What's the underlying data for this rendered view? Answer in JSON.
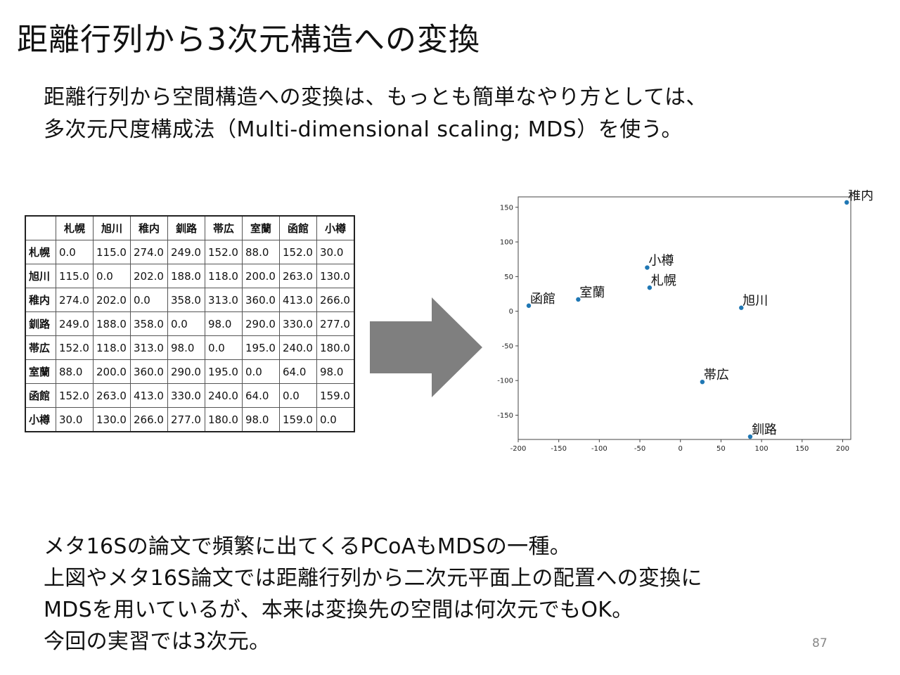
{
  "slide": {
    "title": "距離行列から3次元構造への変換",
    "intro_lines": [
      "距離行列から空間構造への変換は、もっとも簡単なやり方としては、",
      "多次元尺度構成法（Multi-dimensional scaling; MDS）を使う。"
    ],
    "bottom_lines": [
      "メタ16Sの論文で頻繁に出てくるPCoAもMDSの一種。",
      "上図やメタ16S論文では距離行列から二次元平面上の配置への変換に",
      "MDSを用いているが、本来は変換先の空間は何次元でもOK。",
      "今回の実習では3次元。"
    ],
    "page_number": "87"
  },
  "table": {
    "columns": [
      "札幌",
      "旭川",
      "稚内",
      "釧路",
      "帯広",
      "室蘭",
      "函館",
      "小樽"
    ],
    "rows": [
      {
        "name": "札幌",
        "values": [
          "0.0",
          "115.0",
          "274.0",
          "249.0",
          "152.0",
          "88.0",
          "152.0",
          "30.0"
        ]
      },
      {
        "name": "旭川",
        "values": [
          "115.0",
          "0.0",
          "202.0",
          "188.0",
          "118.0",
          "200.0",
          "263.0",
          "130.0"
        ]
      },
      {
        "name": "稚内",
        "values": [
          "274.0",
          "202.0",
          "0.0",
          "358.0",
          "313.0",
          "360.0",
          "413.0",
          "266.0"
        ]
      },
      {
        "name": "釧路",
        "values": [
          "249.0",
          "188.0",
          "358.0",
          "0.0",
          "98.0",
          "290.0",
          "330.0",
          "277.0"
        ]
      },
      {
        "name": "帯広",
        "values": [
          "152.0",
          "118.0",
          "313.0",
          "98.0",
          "0.0",
          "195.0",
          "240.0",
          "180.0"
        ]
      },
      {
        "name": "室蘭",
        "values": [
          "88.0",
          "200.0",
          "360.0",
          "290.0",
          "195.0",
          "0.0",
          "64.0",
          "98.0"
        ]
      },
      {
        "name": "函館",
        "values": [
          "152.0",
          "263.0",
          "413.0",
          "330.0",
          "240.0",
          "64.0",
          "0.0",
          "159.0"
        ]
      },
      {
        "name": "小樽",
        "values": [
          "30.0",
          "130.0",
          "266.0",
          "277.0",
          "180.0",
          "98.0",
          "159.0",
          "0.0"
        ]
      }
    ]
  },
  "arrow_color": "#7f7f7f",
  "chart_data": {
    "type": "scatter",
    "title": "",
    "xlabel": "",
    "ylabel": "",
    "xlim": [
      -200,
      210
    ],
    "ylim": [
      -185,
      165
    ],
    "xticks": [
      -200,
      -150,
      -100,
      -50,
      0,
      50,
      100,
      150,
      200
    ],
    "yticks": [
      -150,
      -100,
      -50,
      0,
      50,
      100,
      150
    ],
    "grid": false,
    "point_color": "#1f77b4",
    "points": [
      {
        "label": "稚内",
        "x": 205,
        "y": 157
      },
      {
        "label": "小樽",
        "x": -41,
        "y": 63
      },
      {
        "label": "札幌",
        "x": -38,
        "y": 34
      },
      {
        "label": "室蘭",
        "x": -126,
        "y": 17
      },
      {
        "label": "函館",
        "x": -187,
        "y": 8
      },
      {
        "label": "旭川",
        "x": 75,
        "y": 5
      },
      {
        "label": "帯広",
        "x": 27,
        "y": -102
      },
      {
        "label": "釧路",
        "x": 86,
        "y": -181
      }
    ]
  }
}
